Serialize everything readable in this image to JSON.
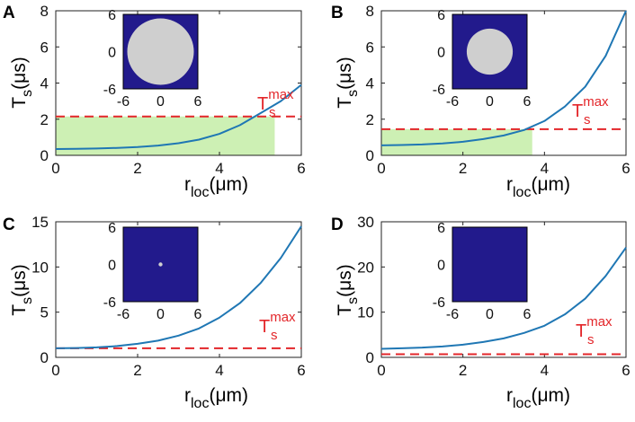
{
  "chart_data": [
    {
      "panel": "A",
      "type": "line",
      "xlabel": {
        "main": "r",
        "sub": "loc",
        "unit": "(μm)"
      },
      "ylabel": {
        "main": "T",
        "sub": "s",
        "unit": "(μs)"
      },
      "xlim": [
        0,
        6
      ],
      "ylim": [
        0,
        8
      ],
      "xticks": [
        "0",
        "2",
        "4",
        "6"
      ],
      "yticks": [
        "0",
        "2",
        "4",
        "6",
        "8"
      ],
      "series": [
        {
          "name": "T_s",
          "x": [
            0,
            0.5,
            1,
            1.5,
            2,
            2.5,
            3,
            3.5,
            4,
            4.5,
            5,
            5.5,
            6
          ],
          "y": [
            0.35,
            0.36,
            0.38,
            0.41,
            0.46,
            0.54,
            0.67,
            0.87,
            1.19,
            1.67,
            2.33,
            3.0,
            3.9
          ]
        }
      ],
      "threshold": {
        "value": 2.15,
        "label_main": "T",
        "label_sub": "s",
        "label_sup": "max"
      },
      "shaded_region": {
        "x_from": 0,
        "x_to": 5.35,
        "y_from": 0,
        "y_to": 2.15
      },
      "inset": {
        "xticks": [
          "-6",
          "0",
          "6"
        ],
        "yticks": [
          "6",
          "0",
          "-6"
        ],
        "disk_radius": 5.35
      }
    },
    {
      "panel": "B",
      "type": "line",
      "xlabel": {
        "main": "r",
        "sub": "loc",
        "unit": "(μm)"
      },
      "ylabel": {
        "main": "T",
        "sub": "s",
        "unit": "(μs)"
      },
      "xlim": [
        0,
        6
      ],
      "ylim": [
        0,
        8
      ],
      "xticks": [
        "0",
        "2",
        "4",
        "6"
      ],
      "yticks": [
        "0",
        "2",
        "4",
        "6",
        "8"
      ],
      "series": [
        {
          "name": "T_s",
          "x": [
            0,
            0.5,
            1,
            1.5,
            2,
            2.5,
            3,
            3.5,
            4,
            4.5,
            5,
            5.5,
            6
          ],
          "y": [
            0.55,
            0.57,
            0.6,
            0.66,
            0.75,
            0.9,
            1.1,
            1.4,
            1.9,
            2.7,
            3.8,
            5.5,
            8.0
          ]
        }
      ],
      "threshold": {
        "value": 1.45,
        "label_main": "T",
        "label_sub": "s",
        "label_sup": "max"
      },
      "shaded_region": {
        "x_from": 0,
        "x_to": 3.7,
        "y_from": 0,
        "y_to": 1.45
      },
      "inset": {
        "xticks": [
          "-6",
          "0",
          "6"
        ],
        "yticks": [
          "6",
          "0",
          "-6"
        ],
        "disk_radius": 3.7
      }
    },
    {
      "panel": "C",
      "type": "line",
      "xlabel": {
        "main": "r",
        "sub": "loc",
        "unit": "(μm)"
      },
      "ylabel": {
        "main": "T",
        "sub": "s",
        "unit": "(μs)"
      },
      "xlim": [
        0,
        6
      ],
      "ylim": [
        0,
        15
      ],
      "xticks": [
        "0",
        "2",
        "4",
        "6"
      ],
      "yticks": [
        "0",
        "5",
        "10",
        "15"
      ],
      "series": [
        {
          "name": "T_s",
          "x": [
            0,
            0.5,
            1,
            1.5,
            2,
            2.5,
            3,
            3.5,
            4,
            4.5,
            5,
            5.5,
            6
          ],
          "y": [
            1.0,
            1.03,
            1.1,
            1.25,
            1.5,
            1.85,
            2.4,
            3.2,
            4.4,
            6.0,
            8.2,
            11.0,
            14.5
          ]
        }
      ],
      "threshold": {
        "value": 1.0,
        "label_main": "T",
        "label_sub": "s",
        "label_sup": "max"
      },
      "shaded_region": null,
      "inset": {
        "xticks": [
          "-6",
          "0",
          "6"
        ],
        "yticks": [
          "6",
          "0",
          "-6"
        ],
        "disk_radius": 0.3
      }
    },
    {
      "panel": "D",
      "type": "line",
      "xlabel": {
        "main": "r",
        "sub": "loc",
        "unit": "(μm)"
      },
      "ylabel": {
        "main": "T",
        "sub": "s",
        "unit": "(μs)"
      },
      "xlim": [
        0,
        6
      ],
      "ylim": [
        0,
        30
      ],
      "xticks": [
        "0",
        "2",
        "4",
        "6"
      ],
      "yticks": [
        "0",
        "10",
        "20",
        "30"
      ],
      "series": [
        {
          "name": "T_s",
          "x": [
            0,
            0.5,
            1,
            1.5,
            2,
            2.5,
            3,
            3.5,
            4,
            4.5,
            5,
            5.5,
            6
          ],
          "y": [
            1.9,
            2.0,
            2.15,
            2.4,
            2.8,
            3.4,
            4.2,
            5.4,
            7.0,
            9.5,
            13.0,
            18.0,
            24.3
          ]
        }
      ],
      "threshold": {
        "value": 0.7,
        "label_main": "T",
        "label_sub": "s",
        "label_sup": "max"
      },
      "shaded_region": null,
      "inset": {
        "xticks": [
          "-6",
          "0",
          "6"
        ],
        "yticks": [
          "6",
          "0",
          "-6"
        ],
        "disk_radius": 0
      }
    }
  ],
  "colors": {
    "curve": "#1f77b4",
    "threshold": "#e3262a",
    "shade": "#cdf0b4",
    "inset_bg": "#221a8c",
    "disk": "#cfcfcf",
    "axis": "#222222"
  }
}
